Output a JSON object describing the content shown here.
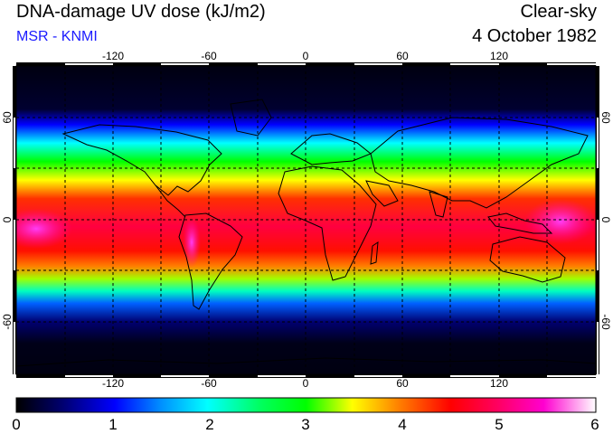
{
  "header": {
    "title": "DNA-damage UV dose (kJ/m2)",
    "subtitle": "MSR - KNMI",
    "condition": "Clear-sky",
    "date": "4 October 1982"
  },
  "map": {
    "lon_ticks": [
      "-120",
      "-60",
      "0",
      "60",
      "120"
    ],
    "lat_ticks": [
      "60",
      "0",
      "-60"
    ],
    "lon_range": [
      -180,
      180
    ],
    "lat_range": [
      -90,
      90
    ],
    "gridlines": true,
    "background": "#000010"
  },
  "colorbar": {
    "labels": [
      "0",
      "1",
      "2",
      "3",
      "4",
      "5",
      "6"
    ],
    "range": [
      0,
      6
    ],
    "colors": [
      "#000000",
      "#000060",
      "#0000ff",
      "#0080ff",
      "#00ffff",
      "#00ff80",
      "#00ff00",
      "#80ff00",
      "#ffff00",
      "#ffa000",
      "#ff4000",
      "#ff0000",
      "#ff0060",
      "#ff00c0",
      "#ffb0ff",
      "#ffffff"
    ]
  }
}
